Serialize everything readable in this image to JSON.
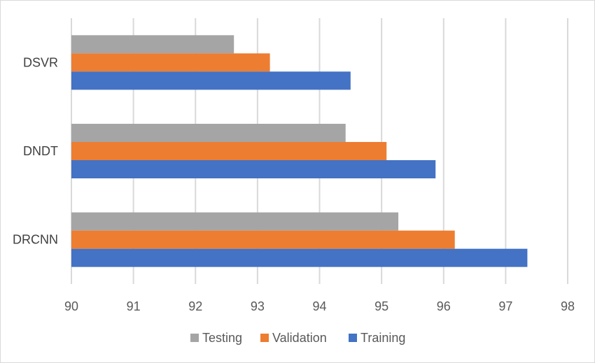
{
  "chart_data": {
    "type": "bar",
    "orientation": "horizontal",
    "categories": [
      "DSVR",
      "DNDT",
      "DRCNN"
    ],
    "series": [
      {
        "name": "Testing",
        "color": "#a5a5a5",
        "values": [
          92.62,
          94.42,
          95.27
        ]
      },
      {
        "name": "Validation",
        "color": "#ed7d31",
        "values": [
          93.2,
          95.08,
          96.18
        ]
      },
      {
        "name": "Training",
        "color": "#4472c4",
        "values": [
          94.5,
          95.87,
          97.35
        ]
      }
    ],
    "xlim": [
      90,
      98
    ],
    "xticks": [
      90,
      91,
      92,
      93,
      94,
      95,
      96,
      97,
      98
    ],
    "grid": true,
    "legend_position": "bottom"
  }
}
